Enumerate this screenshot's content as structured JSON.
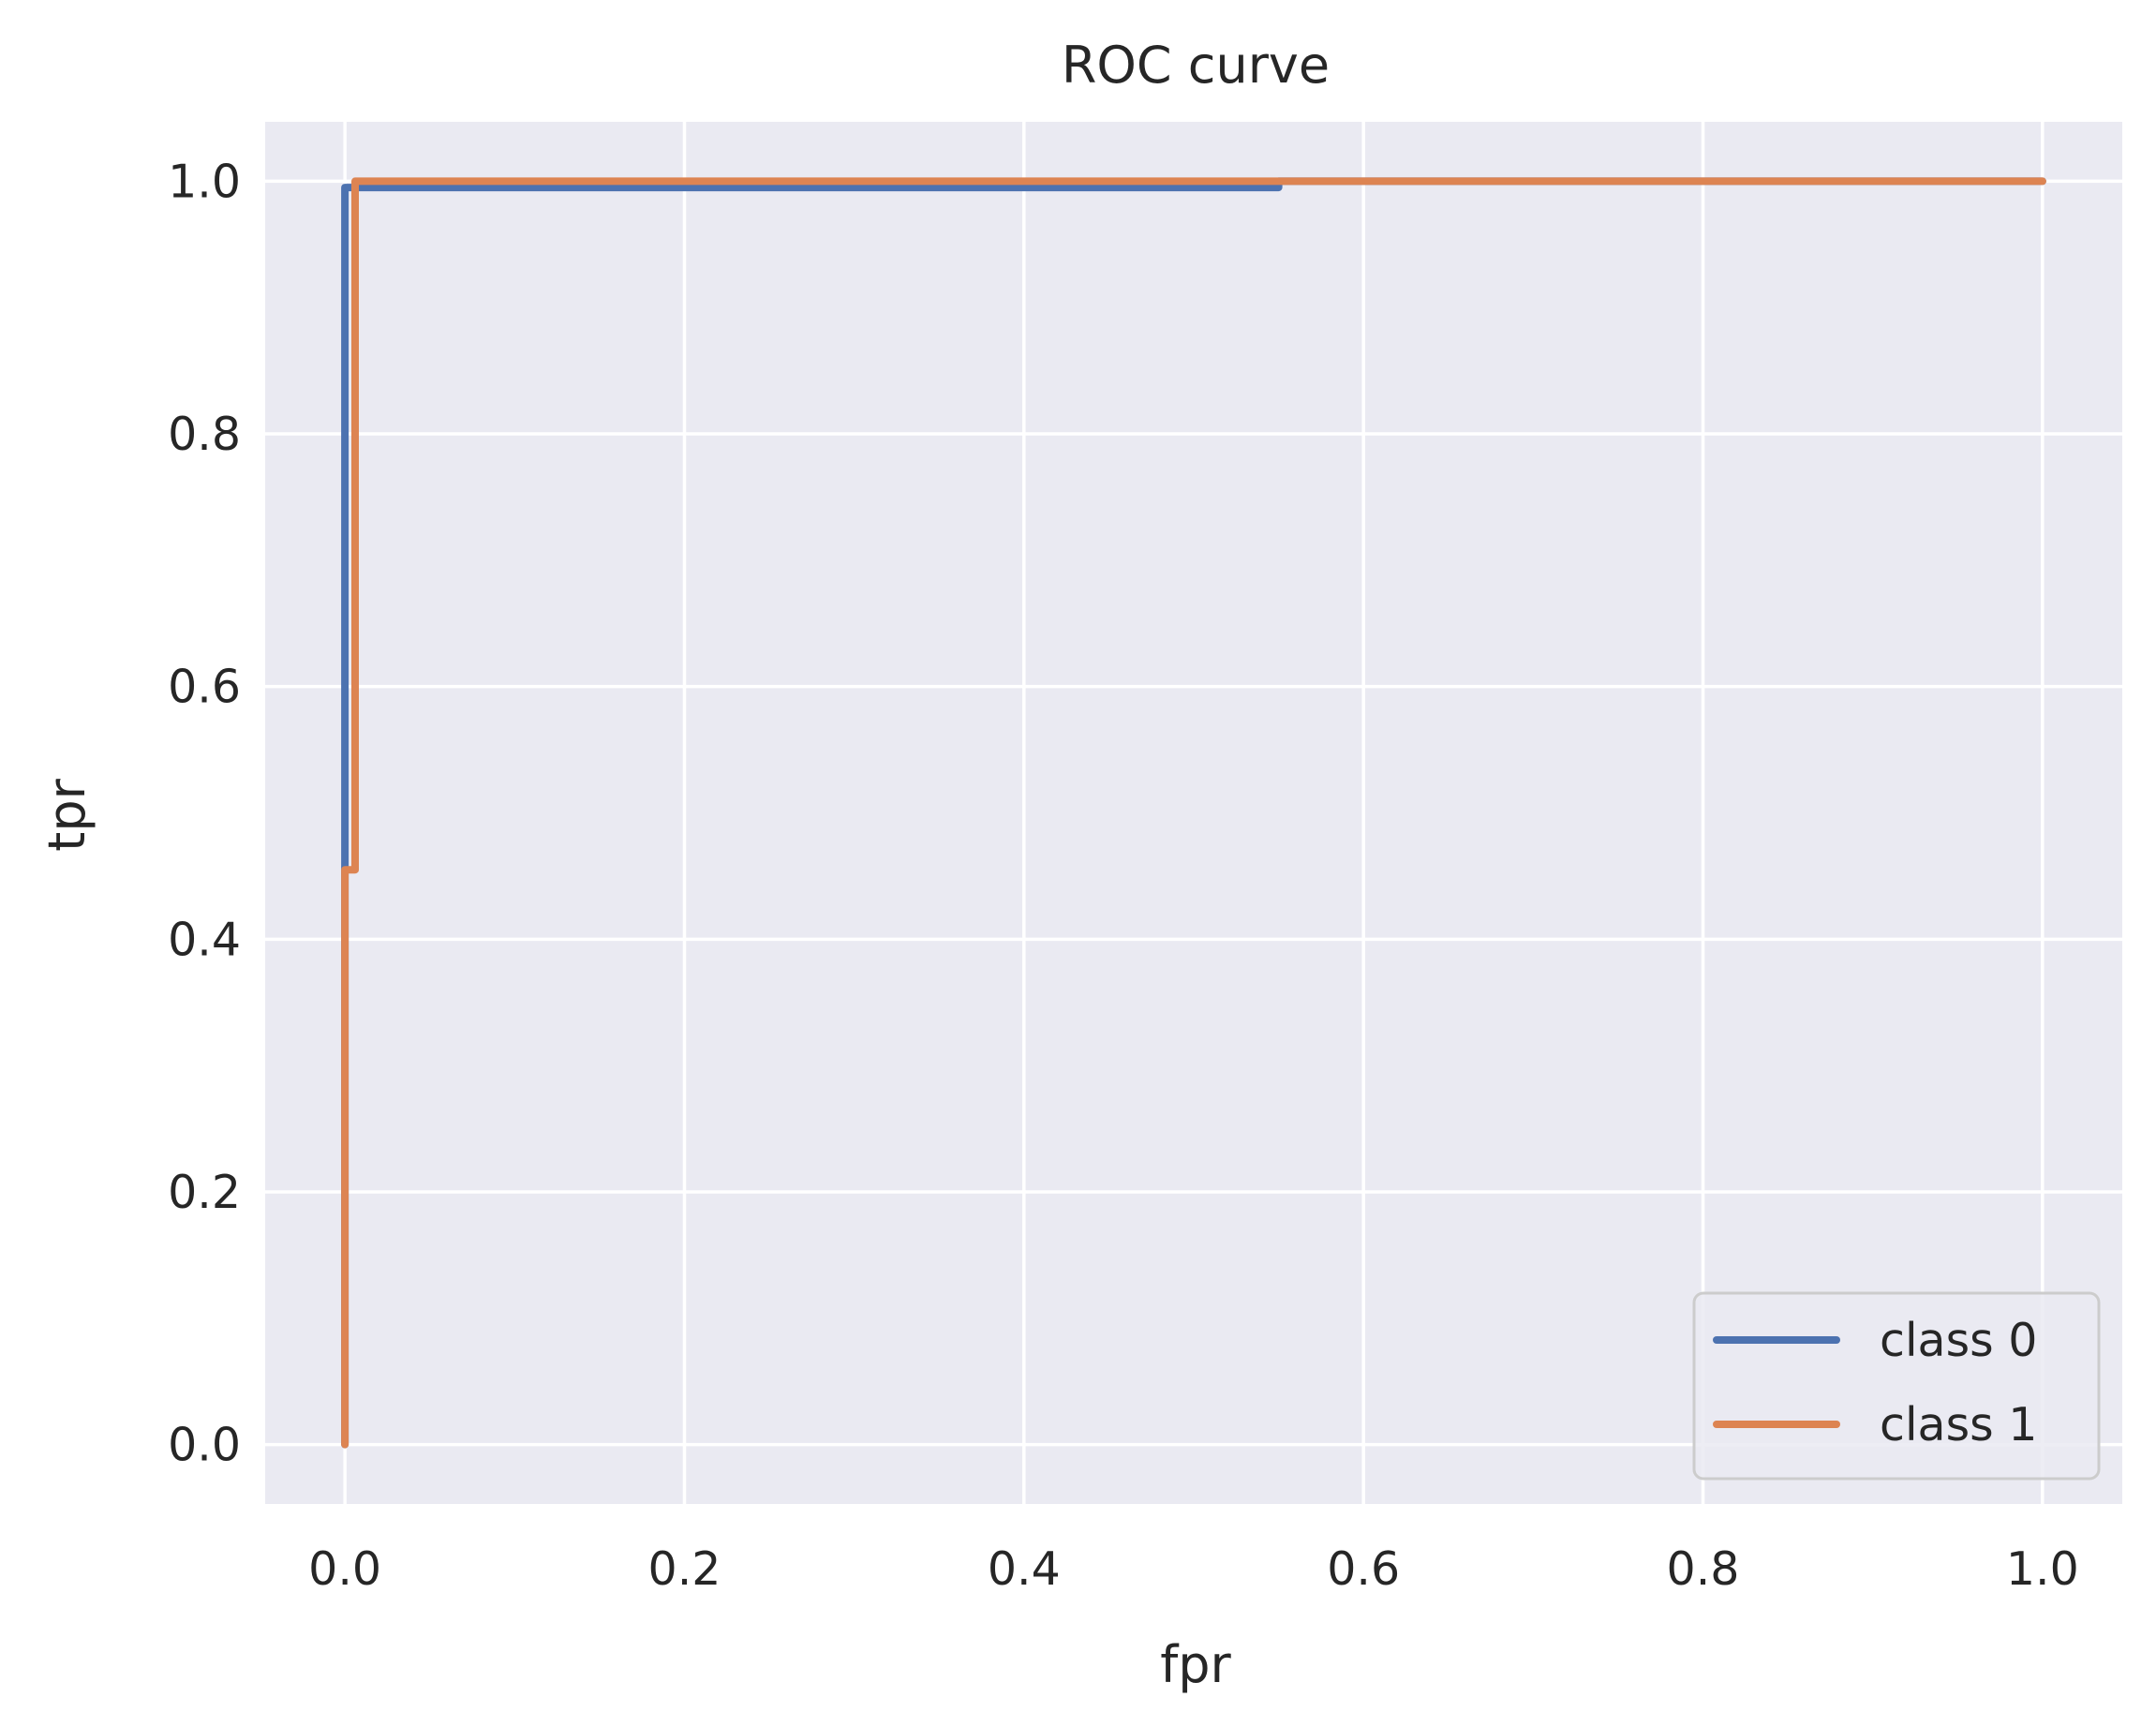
{
  "chart_data": {
    "type": "line",
    "title": "ROC curve",
    "xlabel": "fpr",
    "ylabel": "tpr",
    "xlim": [
      -0.047,
      1.047
    ],
    "ylim": [
      -0.047,
      1.047
    ],
    "xticks": [
      "0.0",
      "0.2",
      "0.4",
      "0.6",
      "0.8",
      "1.0"
    ],
    "yticks": [
      "0.0",
      "0.2",
      "0.4",
      "0.6",
      "0.8",
      "1.0"
    ],
    "grid": true,
    "legend_position": "lower right",
    "background": "#EAEAF2",
    "series": [
      {
        "name": "class 0",
        "color": "#4C72B0",
        "x": [
          0.0,
          0.0,
          0.0,
          0.0,
          0.55,
          0.55,
          1.0
        ],
        "y": [
          0.0,
          0.455,
          0.455,
          0.995,
          0.995,
          1.0,
          1.0
        ]
      },
      {
        "name": "class 1",
        "color": "#DD8452",
        "x": [
          0.0,
          0.0,
          0.006,
          0.006,
          1.0
        ],
        "y": [
          0.0,
          0.455,
          0.455,
          1.0,
          1.0
        ]
      }
    ]
  }
}
